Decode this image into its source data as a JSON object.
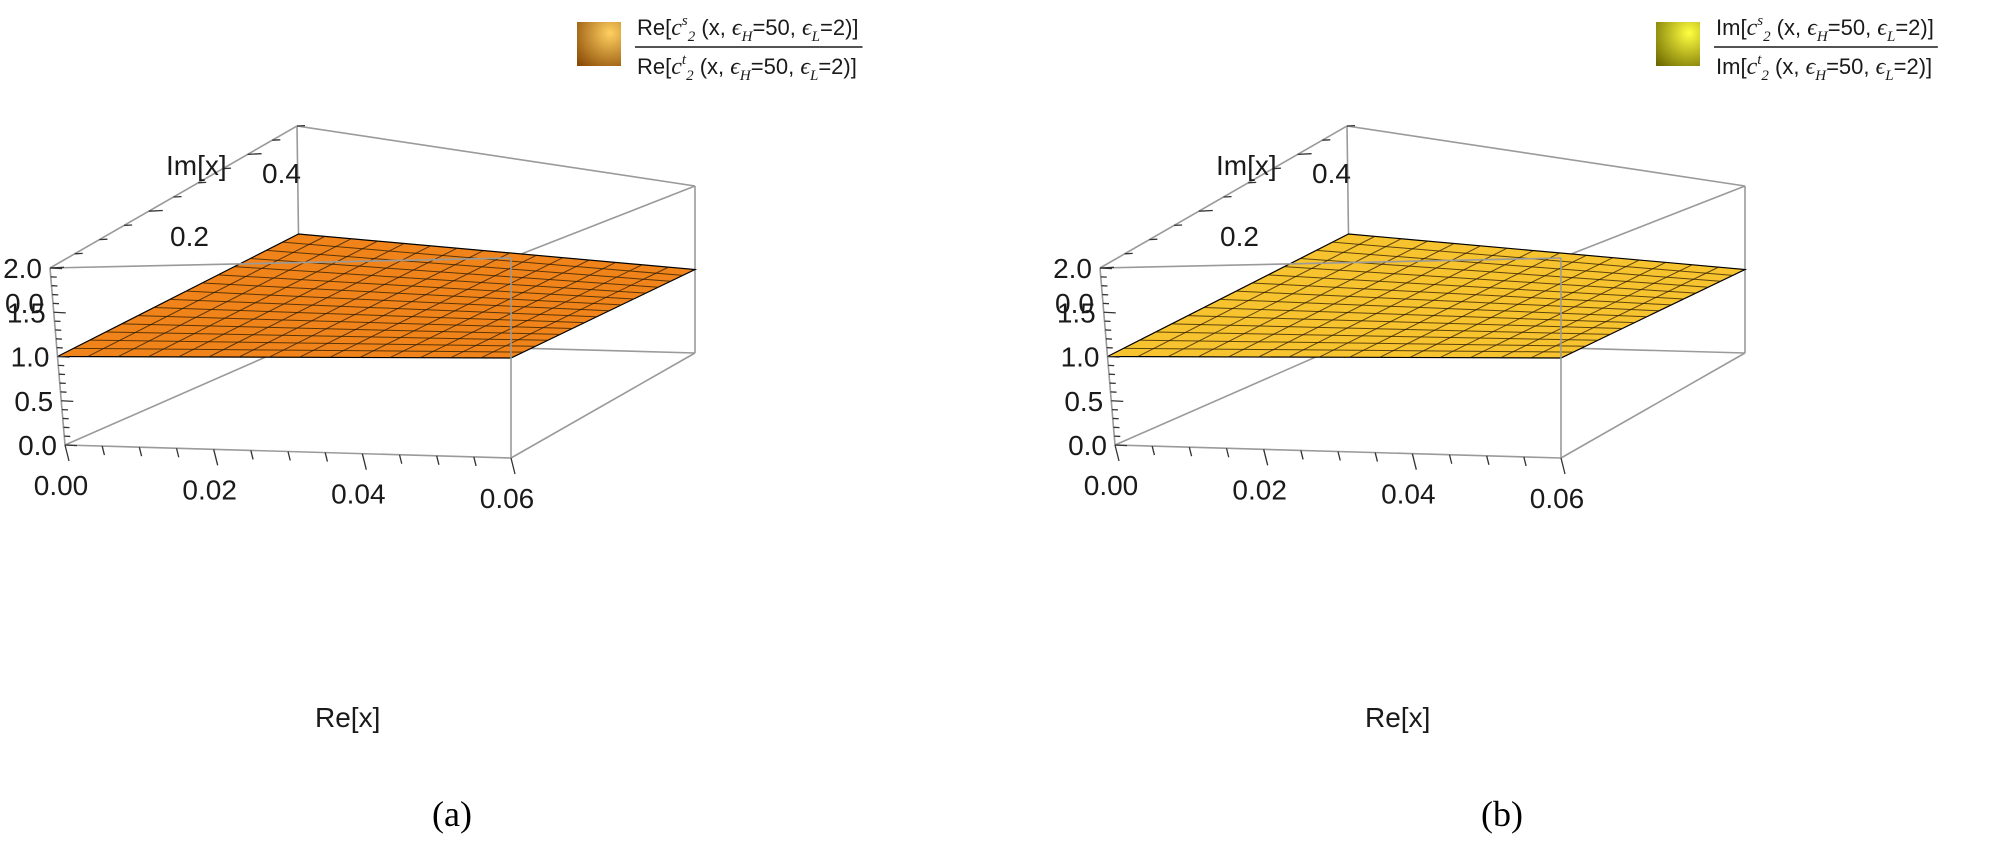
{
  "chart_data": [
    {
      "type": "surface3d",
      "panel_label": "(a)",
      "legend": {
        "numerator": {
          "prefix": "Re[",
          "c": "c",
          "sup": "s",
          "sub": "2",
          "args": " (x, ",
          "eh": "ϵ",
          "eh_sub": "H",
          "eh_val": "=50, ",
          "el": "ϵ",
          "el_sub": "L",
          "el_val": "=2)]"
        },
        "denominator": {
          "prefix": "Re[",
          "c": "c",
          "sup": "t",
          "sub": "2",
          "args": " (x, ",
          "eh": "ϵ",
          "eh_sub": "H",
          "eh_val": "=50, ",
          "el": "ϵ",
          "el_sub": "L",
          "el_val": "=2)]"
        }
      },
      "x_axis_label": "Re[x]",
      "y_axis_label": "Im[x]",
      "x_ticks": [
        "0.00",
        "0.02",
        "0.04",
        "0.06"
      ],
      "y_ticks": [
        "0.0",
        "0.2",
        "0.4"
      ],
      "z_ticks": [
        "0.0",
        "0.5",
        "1.0",
        "1.5",
        "2.0"
      ],
      "x_range": [
        0,
        0.06
      ],
      "y_range": [
        0,
        0.5
      ],
      "z_range": [
        0,
        2
      ],
      "surface_value": 1.0,
      "mesh": [
        15,
        15
      ],
      "color": "#f0841a",
      "swatch_light": "#ffd060",
      "swatch_dark": "#8a4a05"
    },
    {
      "type": "surface3d",
      "panel_label": "(b)",
      "legend": {
        "numerator": {
          "prefix": "Im[",
          "c": "c",
          "sup": "s",
          "sub": "2",
          "args": " (x, ",
          "eh": "ϵ",
          "eh_sub": "H",
          "eh_val": "=50, ",
          "el": "ϵ",
          "el_sub": "L",
          "el_val": "=2)]"
        },
        "denominator": {
          "prefix": "Im[",
          "c": "c",
          "sup": "t",
          "sub": "2",
          "args": " (x, ",
          "eh": "ϵ",
          "eh_sub": "H",
          "eh_val": "=50, ",
          "el": "ϵ",
          "el_sub": "L",
          "el_val": "=2)]"
        }
      },
      "x_axis_label": "Re[x]",
      "y_axis_label": "Im[x]",
      "x_ticks": [
        "0.00",
        "0.02",
        "0.04",
        "0.06"
      ],
      "y_ticks": [
        "0.0",
        "0.2",
        "0.4"
      ],
      "z_ticks": [
        "0.0",
        "0.5",
        "1.0",
        "1.5",
        "2.0"
      ],
      "x_range": [
        0,
        0.06
      ],
      "y_range": [
        0,
        0.5
      ],
      "z_range": [
        0,
        2
      ],
      "surface_value": 1.0,
      "mesh": [
        15,
        15
      ],
      "color": "#f7c32e",
      "swatch_light": "#ffff40",
      "swatch_dark": "#6e6a00"
    }
  ]
}
